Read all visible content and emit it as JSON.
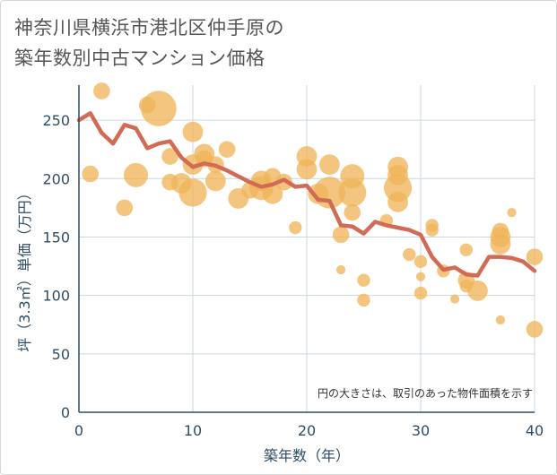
{
  "title_line1": "神奈川県横浜市港北区仲手原の",
  "title_line2": "築年数別中古マンション価格",
  "chart_data": {
    "type": "scatter",
    "xlabel": "築年数（年）",
    "ylabel": "坪（3.3㎡）単価（万円）",
    "note": "円の大きさは、取引のあった物件面積を示す",
    "xlim": [
      0,
      40
    ],
    "ylim": [
      0,
      280
    ],
    "xticks": [
      "0",
      "10",
      "20",
      "30",
      "40"
    ],
    "xtick_values": [
      0,
      10,
      20,
      30,
      40
    ],
    "yticks": [
      "0",
      "50",
      "100",
      "150",
      "200",
      "250"
    ],
    "ytick_values": [
      0,
      50,
      100,
      150,
      200,
      250
    ],
    "colors": {
      "bubble": "#f0b55a",
      "line": "#d26b55",
      "grid": "#ccd7e3",
      "axis": "#2e4d66"
    },
    "series": [
      {
        "kind": "bubbles",
        "points": [
          {
            "x": 1,
            "y": 204,
            "s": 3
          },
          {
            "x": 2,
            "y": 275,
            "s": 3
          },
          {
            "x": 4,
            "y": 175,
            "s": 3
          },
          {
            "x": 5,
            "y": 203,
            "s": 5
          },
          {
            "x": 6,
            "y": 263,
            "s": 3
          },
          {
            "x": 7,
            "y": 260,
            "s": 8
          },
          {
            "x": 8,
            "y": 219,
            "s": 3
          },
          {
            "x": 8,
            "y": 197,
            "s": 3
          },
          {
            "x": 9,
            "y": 196,
            "s": 4
          },
          {
            "x": 10,
            "y": 240,
            "s": 4
          },
          {
            "x": 10,
            "y": 212,
            "s": 4
          },
          {
            "x": 10,
            "y": 188,
            "s": 6
          },
          {
            "x": 11,
            "y": 221,
            "s": 4
          },
          {
            "x": 11,
            "y": 217,
            "s": 3
          },
          {
            "x": 12,
            "y": 212,
            "s": 3
          },
          {
            "x": 12,
            "y": 198,
            "s": 4
          },
          {
            "x": 13,
            "y": 225,
            "s": 3
          },
          {
            "x": 14,
            "y": 183,
            "s": 4
          },
          {
            "x": 15,
            "y": 190,
            "s": 3
          },
          {
            "x": 16,
            "y": 198,
            "s": 4
          },
          {
            "x": 16,
            "y": 192,
            "s": 5
          },
          {
            "x": 17,
            "y": 202,
            "s": 3
          },
          {
            "x": 17,
            "y": 187,
            "s": 4
          },
          {
            "x": 18,
            "y": 197,
            "s": 3
          },
          {
            "x": 19,
            "y": 158,
            "s": 2
          },
          {
            "x": 20,
            "y": 219,
            "s": 4
          },
          {
            "x": 20,
            "y": 208,
            "s": 4
          },
          {
            "x": 21,
            "y": 187,
            "s": 4
          },
          {
            "x": 22,
            "y": 212,
            "s": 4
          },
          {
            "x": 22,
            "y": 188,
            "s": 7
          },
          {
            "x": 23,
            "y": 152,
            "s": 3
          },
          {
            "x": 23,
            "y": 122,
            "s": 1
          },
          {
            "x": 24,
            "y": 202,
            "s": 5
          },
          {
            "x": 24,
            "y": 188,
            "s": 6
          },
          {
            "x": 24,
            "y": 171,
            "s": 3
          },
          {
            "x": 25,
            "y": 113,
            "s": 2
          },
          {
            "x": 25,
            "y": 96,
            "s": 2
          },
          {
            "x": 27,
            "y": 164,
            "s": 2
          },
          {
            "x": 28,
            "y": 210,
            "s": 4
          },
          {
            "x": 28,
            "y": 203,
            "s": 4
          },
          {
            "x": 28,
            "y": 192,
            "s": 6
          },
          {
            "x": 28,
            "y": 180,
            "s": 4
          },
          {
            "x": 29,
            "y": 135,
            "s": 2
          },
          {
            "x": 30,
            "y": 129,
            "s": 2
          },
          {
            "x": 30,
            "y": 116,
            "s": 1
          },
          {
            "x": 30,
            "y": 102,
            "s": 2
          },
          {
            "x": 31,
            "y": 160,
            "s": 2
          },
          {
            "x": 31,
            "y": 156,
            "s": 2
          },
          {
            "x": 32,
            "y": 121,
            "s": 2
          },
          {
            "x": 33,
            "y": 97,
            "s": 1
          },
          {
            "x": 34,
            "y": 139,
            "s": 2
          },
          {
            "x": 34,
            "y": 113,
            "s": 3
          },
          {
            "x": 34,
            "y": 108,
            "s": 2
          },
          {
            "x": 35,
            "y": 104,
            "s": 4
          },
          {
            "x": 37,
            "y": 155,
            "s": 3
          },
          {
            "x": 37,
            "y": 150,
            "s": 4
          },
          {
            "x": 37,
            "y": 144,
            "s": 4
          },
          {
            "x": 37,
            "y": 79,
            "s": 1
          },
          {
            "x": 38,
            "y": 171,
            "s": 1
          },
          {
            "x": 40,
            "y": 133,
            "s": 3
          },
          {
            "x": 40,
            "y": 71,
            "s": 3
          }
        ]
      },
      {
        "kind": "line",
        "x": [
          0,
          1,
          2,
          3,
          4,
          5,
          6,
          7,
          8,
          9,
          10,
          11,
          12,
          13,
          14,
          15,
          16,
          17,
          18,
          19,
          20,
          21,
          22,
          23,
          24,
          25,
          26,
          27,
          28,
          29,
          30,
          31,
          32,
          33,
          34,
          35,
          36,
          37,
          38,
          39,
          40
        ],
        "y": [
          250,
          256,
          239,
          230,
          246,
          243,
          226,
          230,
          232,
          218,
          210,
          213,
          211,
          207,
          202,
          197,
          193,
          195,
          199,
          193,
          194,
          182,
          181,
          160,
          159,
          153,
          163,
          160,
          158,
          156,
          152,
          133,
          122,
          124,
          118,
          117,
          133,
          133,
          132,
          129,
          121
        ]
      }
    ]
  }
}
